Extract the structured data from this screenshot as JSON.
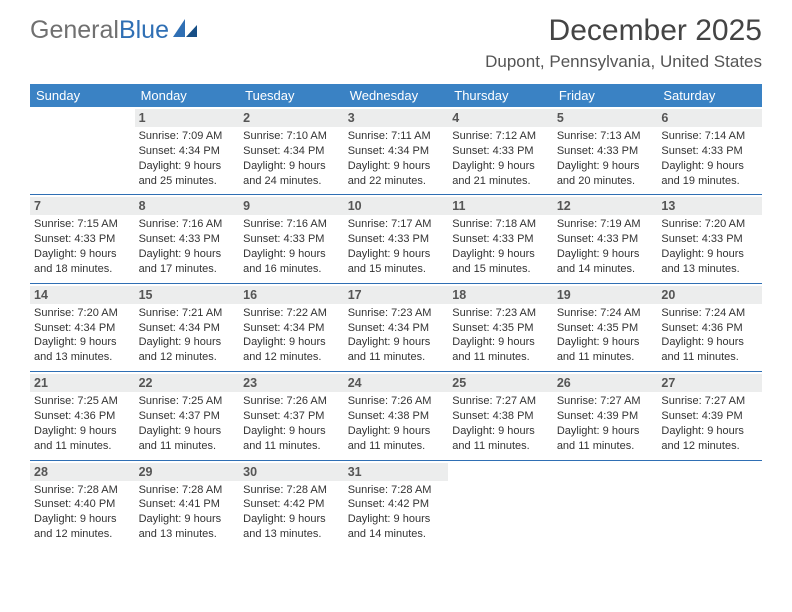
{
  "logo": {
    "word1": "General",
    "word2": "Blue"
  },
  "title": "December 2025",
  "location": "Dupont, Pennsylvania, United States",
  "colors": {
    "header_bg": "#3a82c4",
    "rule": "#2f6fb4",
    "daynum_bg": "#eceded"
  },
  "weekdays": [
    "Sunday",
    "Monday",
    "Tuesday",
    "Wednesday",
    "Thursday",
    "Friday",
    "Saturday"
  ],
  "weeks": [
    [
      null,
      {
        "n": "1",
        "sr": "Sunrise: 7:09 AM",
        "ss": "Sunset: 4:34 PM",
        "d1": "Daylight: 9 hours",
        "d2": "and 25 minutes."
      },
      {
        "n": "2",
        "sr": "Sunrise: 7:10 AM",
        "ss": "Sunset: 4:34 PM",
        "d1": "Daylight: 9 hours",
        "d2": "and 24 minutes."
      },
      {
        "n": "3",
        "sr": "Sunrise: 7:11 AM",
        "ss": "Sunset: 4:34 PM",
        "d1": "Daylight: 9 hours",
        "d2": "and 22 minutes."
      },
      {
        "n": "4",
        "sr": "Sunrise: 7:12 AM",
        "ss": "Sunset: 4:33 PM",
        "d1": "Daylight: 9 hours",
        "d2": "and 21 minutes."
      },
      {
        "n": "5",
        "sr": "Sunrise: 7:13 AM",
        "ss": "Sunset: 4:33 PM",
        "d1": "Daylight: 9 hours",
        "d2": "and 20 minutes."
      },
      {
        "n": "6",
        "sr": "Sunrise: 7:14 AM",
        "ss": "Sunset: 4:33 PM",
        "d1": "Daylight: 9 hours",
        "d2": "and 19 minutes."
      }
    ],
    [
      {
        "n": "7",
        "sr": "Sunrise: 7:15 AM",
        "ss": "Sunset: 4:33 PM",
        "d1": "Daylight: 9 hours",
        "d2": "and 18 minutes."
      },
      {
        "n": "8",
        "sr": "Sunrise: 7:16 AM",
        "ss": "Sunset: 4:33 PM",
        "d1": "Daylight: 9 hours",
        "d2": "and 17 minutes."
      },
      {
        "n": "9",
        "sr": "Sunrise: 7:16 AM",
        "ss": "Sunset: 4:33 PM",
        "d1": "Daylight: 9 hours",
        "d2": "and 16 minutes."
      },
      {
        "n": "10",
        "sr": "Sunrise: 7:17 AM",
        "ss": "Sunset: 4:33 PM",
        "d1": "Daylight: 9 hours",
        "d2": "and 15 minutes."
      },
      {
        "n": "11",
        "sr": "Sunrise: 7:18 AM",
        "ss": "Sunset: 4:33 PM",
        "d1": "Daylight: 9 hours",
        "d2": "and 15 minutes."
      },
      {
        "n": "12",
        "sr": "Sunrise: 7:19 AM",
        "ss": "Sunset: 4:33 PM",
        "d1": "Daylight: 9 hours",
        "d2": "and 14 minutes."
      },
      {
        "n": "13",
        "sr": "Sunrise: 7:20 AM",
        "ss": "Sunset: 4:33 PM",
        "d1": "Daylight: 9 hours",
        "d2": "and 13 minutes."
      }
    ],
    [
      {
        "n": "14",
        "sr": "Sunrise: 7:20 AM",
        "ss": "Sunset: 4:34 PM",
        "d1": "Daylight: 9 hours",
        "d2": "and 13 minutes."
      },
      {
        "n": "15",
        "sr": "Sunrise: 7:21 AM",
        "ss": "Sunset: 4:34 PM",
        "d1": "Daylight: 9 hours",
        "d2": "and 12 minutes."
      },
      {
        "n": "16",
        "sr": "Sunrise: 7:22 AM",
        "ss": "Sunset: 4:34 PM",
        "d1": "Daylight: 9 hours",
        "d2": "and 12 minutes."
      },
      {
        "n": "17",
        "sr": "Sunrise: 7:23 AM",
        "ss": "Sunset: 4:34 PM",
        "d1": "Daylight: 9 hours",
        "d2": "and 11 minutes."
      },
      {
        "n": "18",
        "sr": "Sunrise: 7:23 AM",
        "ss": "Sunset: 4:35 PM",
        "d1": "Daylight: 9 hours",
        "d2": "and 11 minutes."
      },
      {
        "n": "19",
        "sr": "Sunrise: 7:24 AM",
        "ss": "Sunset: 4:35 PM",
        "d1": "Daylight: 9 hours",
        "d2": "and 11 minutes."
      },
      {
        "n": "20",
        "sr": "Sunrise: 7:24 AM",
        "ss": "Sunset: 4:36 PM",
        "d1": "Daylight: 9 hours",
        "d2": "and 11 minutes."
      }
    ],
    [
      {
        "n": "21",
        "sr": "Sunrise: 7:25 AM",
        "ss": "Sunset: 4:36 PM",
        "d1": "Daylight: 9 hours",
        "d2": "and 11 minutes."
      },
      {
        "n": "22",
        "sr": "Sunrise: 7:25 AM",
        "ss": "Sunset: 4:37 PM",
        "d1": "Daylight: 9 hours",
        "d2": "and 11 minutes."
      },
      {
        "n": "23",
        "sr": "Sunrise: 7:26 AM",
        "ss": "Sunset: 4:37 PM",
        "d1": "Daylight: 9 hours",
        "d2": "and 11 minutes."
      },
      {
        "n": "24",
        "sr": "Sunrise: 7:26 AM",
        "ss": "Sunset: 4:38 PM",
        "d1": "Daylight: 9 hours",
        "d2": "and 11 minutes."
      },
      {
        "n": "25",
        "sr": "Sunrise: 7:27 AM",
        "ss": "Sunset: 4:38 PM",
        "d1": "Daylight: 9 hours",
        "d2": "and 11 minutes."
      },
      {
        "n": "26",
        "sr": "Sunrise: 7:27 AM",
        "ss": "Sunset: 4:39 PM",
        "d1": "Daylight: 9 hours",
        "d2": "and 11 minutes."
      },
      {
        "n": "27",
        "sr": "Sunrise: 7:27 AM",
        "ss": "Sunset: 4:39 PM",
        "d1": "Daylight: 9 hours",
        "d2": "and 12 minutes."
      }
    ],
    [
      {
        "n": "28",
        "sr": "Sunrise: 7:28 AM",
        "ss": "Sunset: 4:40 PM",
        "d1": "Daylight: 9 hours",
        "d2": "and 12 minutes."
      },
      {
        "n": "29",
        "sr": "Sunrise: 7:28 AM",
        "ss": "Sunset: 4:41 PM",
        "d1": "Daylight: 9 hours",
        "d2": "and 13 minutes."
      },
      {
        "n": "30",
        "sr": "Sunrise: 7:28 AM",
        "ss": "Sunset: 4:42 PM",
        "d1": "Daylight: 9 hours",
        "d2": "and 13 minutes."
      },
      {
        "n": "31",
        "sr": "Sunrise: 7:28 AM",
        "ss": "Sunset: 4:42 PM",
        "d1": "Daylight: 9 hours",
        "d2": "and 14 minutes."
      },
      null,
      null,
      null
    ]
  ]
}
